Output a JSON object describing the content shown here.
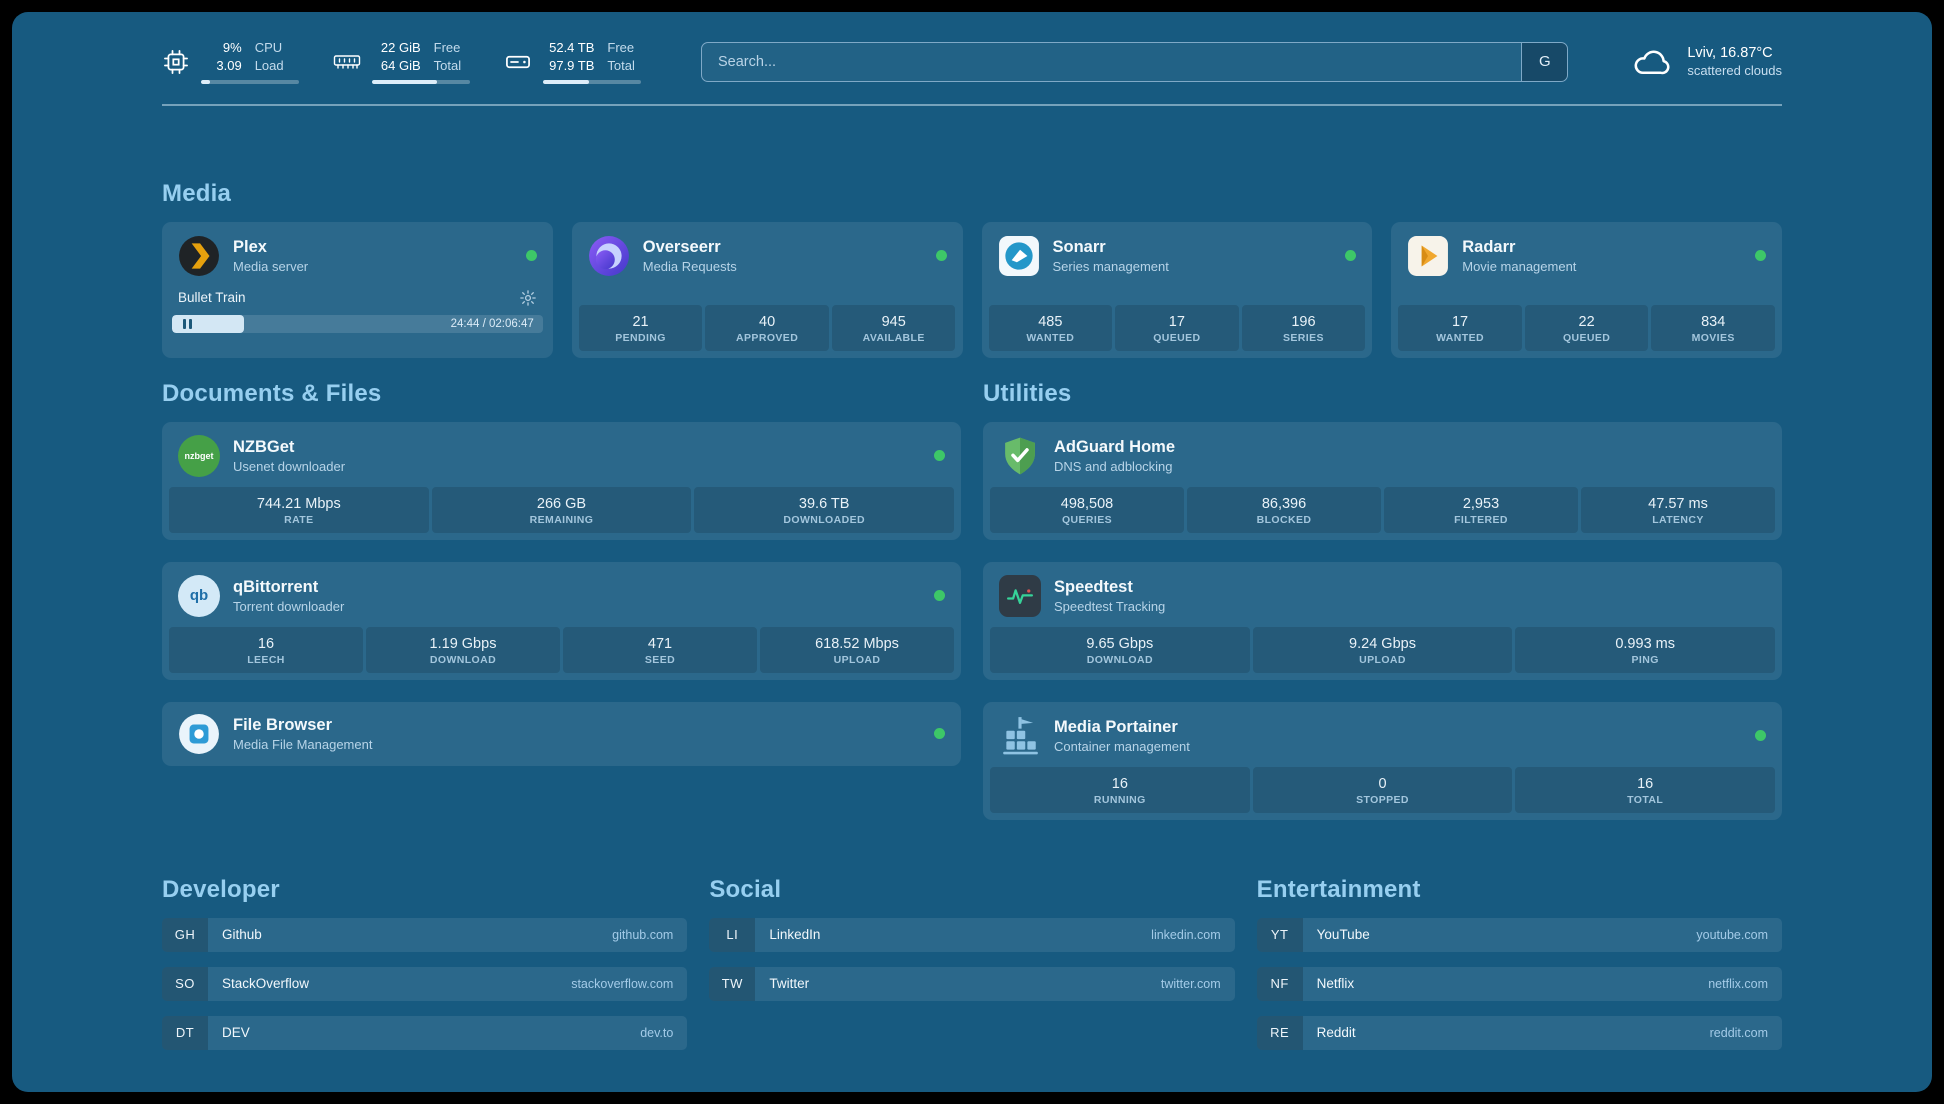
{
  "colors": {
    "background": "#175a80",
    "card": "#2a6d92",
    "section_title": "#97cff0",
    "status_online": "#3dc768",
    "plex_brand": "#e5a00d",
    "adguard_green": "#5fb760",
    "speedtest_pulse": "#36d399"
  },
  "header": {
    "metrics": [
      {
        "id": "cpu",
        "values": [
          "9%",
          "3.09"
        ],
        "labels": [
          "CPU",
          "Load"
        ],
        "progress": 9
      },
      {
        "id": "memory",
        "values": [
          "22 GiB",
          "64 GiB"
        ],
        "labels": [
          "Free",
          "Total"
        ],
        "progress": 66
      },
      {
        "id": "disk",
        "values": [
          "52.4 TB",
          "97.9 TB"
        ],
        "labels": [
          "Free",
          "Total"
        ],
        "progress": 47
      }
    ],
    "search": {
      "placeholder": "Search...",
      "button_label": "G"
    },
    "weather": {
      "location": "Lviv, 16.87°C",
      "description": "scattered clouds"
    }
  },
  "sections": {
    "media": "Media",
    "documents": "Documents & Files",
    "utilities": "Utilities"
  },
  "services": {
    "plex": {
      "name": "Plex",
      "subtitle": "Media server",
      "now_playing": "Bullet Train",
      "time": "24:44 / 02:06:47",
      "progress": 19.5
    },
    "overseerr": {
      "name": "Overseerr",
      "subtitle": "Media Requests",
      "stats": [
        {
          "value": "21",
          "label": "PENDING"
        },
        {
          "value": "40",
          "label": "APPROVED"
        },
        {
          "value": "945",
          "label": "AVAILABLE"
        }
      ]
    },
    "sonarr": {
      "name": "Sonarr",
      "subtitle": "Series management",
      "stats": [
        {
          "value": "485",
          "label": "WANTED"
        },
        {
          "value": "17",
          "label": "QUEUED"
        },
        {
          "value": "196",
          "label": "SERIES"
        }
      ]
    },
    "radarr": {
      "name": "Radarr",
      "subtitle": "Movie management",
      "stats": [
        {
          "value": "17",
          "label": "WANTED"
        },
        {
          "value": "22",
          "label": "QUEUED"
        },
        {
          "value": "834",
          "label": "MOVIES"
        }
      ]
    },
    "nzbget": {
      "name": "NZBGet",
      "subtitle": "Usenet downloader",
      "icon_text": "nzbget",
      "stats": [
        {
          "value": "744.21 Mbps",
          "label": "RATE"
        },
        {
          "value": "266 GB",
          "label": "REMAINING"
        },
        {
          "value": "39.6 TB",
          "label": "DOWNLOADED"
        }
      ]
    },
    "qbittorrent": {
      "name": "qBittorrent",
      "subtitle": "Torrent downloader",
      "icon_text": "qb",
      "stats": [
        {
          "value": "16",
          "label": "LEECH"
        },
        {
          "value": "1.19 Gbps",
          "label": "DOWNLOAD"
        },
        {
          "value": "471",
          "label": "SEED"
        },
        {
          "value": "618.52 Mbps",
          "label": "UPLOAD"
        }
      ]
    },
    "filebrowser": {
      "name": "File Browser",
      "subtitle": "Media File Management"
    },
    "adguard": {
      "name": "AdGuard Home",
      "subtitle": "DNS and adblocking",
      "stats": [
        {
          "value": "498,508",
          "label": "QUERIES"
        },
        {
          "value": "86,396",
          "label": "BLOCKED"
        },
        {
          "value": "2,953",
          "label": "FILTERED"
        },
        {
          "value": "47.57 ms",
          "label": "LATENCY"
        }
      ]
    },
    "speedtest": {
      "name": "Speedtest",
      "subtitle": "Speedtest Tracking",
      "stats": [
        {
          "value": "9.65 Gbps",
          "label": "DOWNLOAD"
        },
        {
          "value": "9.24 Gbps",
          "label": "UPLOAD"
        },
        {
          "value": "0.993 ms",
          "label": "PING"
        }
      ]
    },
    "portainer": {
      "name": "Media Portainer",
      "subtitle": "Container management",
      "stats": [
        {
          "value": "16",
          "label": "RUNNING"
        },
        {
          "value": "0",
          "label": "STOPPED"
        },
        {
          "value": "16",
          "label": "TOTAL"
        }
      ]
    }
  },
  "bookmarks": [
    {
      "title": "Developer",
      "items": [
        {
          "abbr": "GH",
          "name": "Github",
          "url": "github.com"
        },
        {
          "abbr": "SO",
          "name": "StackOverflow",
          "url": "stackoverflow.com"
        },
        {
          "abbr": "DT",
          "name": "DEV",
          "url": "dev.to"
        }
      ]
    },
    {
      "title": "Social",
      "items": [
        {
          "abbr": "LI",
          "name": "LinkedIn",
          "url": "linkedin.com"
        },
        {
          "abbr": "TW",
          "name": "Twitter",
          "url": "twitter.com"
        }
      ]
    },
    {
      "title": "Entertainment",
      "items": [
        {
          "abbr": "YT",
          "name": "YouTube",
          "url": "youtube.com"
        },
        {
          "abbr": "NF",
          "name": "Netflix",
          "url": "netflix.com"
        },
        {
          "abbr": "RE",
          "name": "Reddit",
          "url": "reddit.com"
        }
      ]
    }
  ]
}
